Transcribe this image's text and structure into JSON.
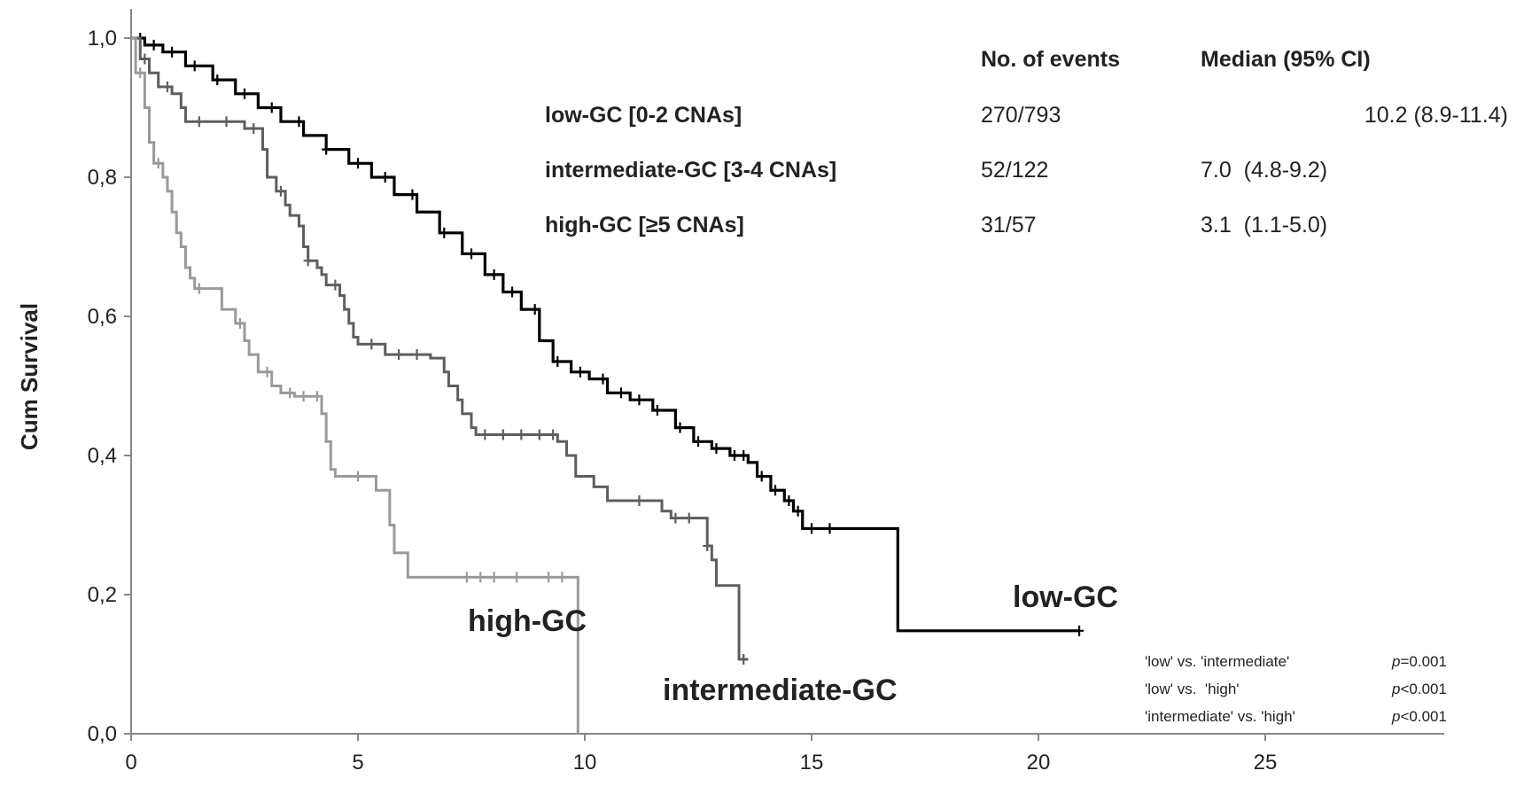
{
  "chart_data": {
    "type": "line",
    "chart_kind": "kaplan-meier",
    "ylabel": "Cum Survival",
    "xlabel": "",
    "xlim": [
      0,
      26.5
    ],
    "ylim": [
      0,
      1.0
    ],
    "x_ticks": [
      "0",
      "5",
      "10",
      "15",
      "20",
      "25"
    ],
    "x_tick_values": [
      0,
      5,
      10,
      15,
      20,
      25
    ],
    "y_ticks": [
      "0,0",
      "0,2",
      "0,4",
      "0,6",
      "0,8",
      "1,0"
    ],
    "y_tick_values": [
      0,
      0.2,
      0.4,
      0.6,
      0.8,
      1.0
    ],
    "grid": false,
    "series": [
      {
        "name": "low-GC",
        "color": "#000000",
        "steps": [
          [
            0,
            1.0
          ],
          [
            0.3,
            0.99
          ],
          [
            0.7,
            0.98
          ],
          [
            1.2,
            0.96
          ],
          [
            1.8,
            0.94
          ],
          [
            2.3,
            0.92
          ],
          [
            2.8,
            0.9
          ],
          [
            3.3,
            0.88
          ],
          [
            3.8,
            0.86
          ],
          [
            4.3,
            0.84
          ],
          [
            4.8,
            0.82
          ],
          [
            5.3,
            0.8
          ],
          [
            5.8,
            0.775
          ],
          [
            6.3,
            0.75
          ],
          [
            6.8,
            0.72
          ],
          [
            7.3,
            0.69
          ],
          [
            7.8,
            0.66
          ],
          [
            8.2,
            0.635
          ],
          [
            8.6,
            0.61
          ],
          [
            9.0,
            0.565
          ],
          [
            9.3,
            0.535
          ],
          [
            9.7,
            0.52
          ],
          [
            10.1,
            0.51
          ],
          [
            10.5,
            0.49
          ],
          [
            11.0,
            0.48
          ],
          [
            11.5,
            0.465
          ],
          [
            12.0,
            0.44
          ],
          [
            12.4,
            0.42
          ],
          [
            12.8,
            0.41
          ],
          [
            13.2,
            0.4
          ],
          [
            13.6,
            0.39
          ],
          [
            13.8,
            0.37
          ],
          [
            14.1,
            0.35
          ],
          [
            14.4,
            0.335
          ],
          [
            14.6,
            0.32
          ],
          [
            14.8,
            0.295
          ],
          [
            16.9,
            0.148
          ],
          [
            20.9,
            0.148
          ]
        ],
        "censor_x": [
          0.2,
          0.5,
          0.9,
          1.4,
          1.9,
          2.5,
          3.1,
          3.7,
          4.3,
          5.0,
          5.6,
          6.2,
          6.9,
          7.5,
          8.0,
          8.4,
          8.9,
          9.4,
          9.9,
          10.4,
          10.8,
          11.2,
          11.6,
          12.1,
          12.5,
          12.9,
          13.3,
          13.5,
          13.9,
          14.2,
          14.5,
          14.7,
          15.0,
          15.4,
          20.9
        ]
      },
      {
        "name": "intermediate-GC",
        "color": "#5e5e5e",
        "steps": [
          [
            0,
            1.0
          ],
          [
            0.2,
            0.97
          ],
          [
            0.4,
            0.95
          ],
          [
            0.6,
            0.93
          ],
          [
            0.9,
            0.92
          ],
          [
            1.1,
            0.9
          ],
          [
            1.2,
            0.88
          ],
          [
            2.5,
            0.87
          ],
          [
            2.9,
            0.84
          ],
          [
            3.0,
            0.8
          ],
          [
            3.2,
            0.78
          ],
          [
            3.4,
            0.76
          ],
          [
            3.5,
            0.745
          ],
          [
            3.7,
            0.73
          ],
          [
            3.8,
            0.7
          ],
          [
            3.9,
            0.68
          ],
          [
            4.1,
            0.67
          ],
          [
            4.2,
            0.66
          ],
          [
            4.3,
            0.645
          ],
          [
            4.6,
            0.63
          ],
          [
            4.7,
            0.61
          ],
          [
            4.8,
            0.59
          ],
          [
            4.9,
            0.57
          ],
          [
            5.0,
            0.56
          ],
          [
            5.6,
            0.545
          ],
          [
            6.6,
            0.54
          ],
          [
            6.9,
            0.52
          ],
          [
            7.0,
            0.5
          ],
          [
            7.2,
            0.48
          ],
          [
            7.3,
            0.46
          ],
          [
            7.5,
            0.44
          ],
          [
            7.6,
            0.43
          ],
          [
            9.4,
            0.42
          ],
          [
            9.6,
            0.4
          ],
          [
            9.8,
            0.37
          ],
          [
            10.2,
            0.355
          ],
          [
            10.5,
            0.335
          ],
          [
            11.7,
            0.32
          ],
          [
            11.9,
            0.31
          ],
          [
            12.6,
            0.31
          ],
          [
            12.7,
            0.27
          ],
          [
            12.8,
            0.25
          ],
          [
            12.9,
            0.213
          ],
          [
            13.3,
            0.213
          ],
          [
            13.4,
            0.107
          ],
          [
            13.6,
            0.107
          ]
        ],
        "censor_x": [
          0.3,
          0.8,
          1.5,
          2.1,
          2.7,
          3.3,
          3.9,
          4.5,
          5.3,
          5.9,
          6.3,
          7.8,
          8.2,
          8.6,
          9.0,
          9.3,
          11.2,
          12.0,
          12.3,
          12.7,
          13.5
        ]
      },
      {
        "name": "high-GC",
        "color": "#9a9a9a",
        "steps": [
          [
            0,
            1.0
          ],
          [
            0.1,
            0.95
          ],
          [
            0.3,
            0.9
          ],
          [
            0.4,
            0.85
          ],
          [
            0.5,
            0.82
          ],
          [
            0.7,
            0.8
          ],
          [
            0.8,
            0.78
          ],
          [
            0.9,
            0.75
          ],
          [
            1.0,
            0.72
          ],
          [
            1.1,
            0.7
          ],
          [
            1.2,
            0.67
          ],
          [
            1.3,
            0.655
          ],
          [
            1.4,
            0.64
          ],
          [
            1.6,
            0.64
          ],
          [
            2.0,
            0.61
          ],
          [
            2.3,
            0.59
          ],
          [
            2.5,
            0.565
          ],
          [
            2.6,
            0.545
          ],
          [
            2.8,
            0.52
          ],
          [
            3.1,
            0.5
          ],
          [
            3.3,
            0.49
          ],
          [
            3.6,
            0.485
          ],
          [
            4.2,
            0.46
          ],
          [
            4.3,
            0.42
          ],
          [
            4.4,
            0.38
          ],
          [
            4.5,
            0.37
          ],
          [
            5.4,
            0.35
          ],
          [
            5.7,
            0.3
          ],
          [
            5.8,
            0.26
          ],
          [
            6.0,
            0.26
          ],
          [
            6.1,
            0.225
          ],
          [
            6.9,
            0.225
          ],
          [
            9.85,
            0.225
          ],
          [
            9.85,
            0.0
          ]
        ],
        "censor_x": [
          0.2,
          0.6,
          1.5,
          2.4,
          3.0,
          3.5,
          3.8,
          4.1,
          5.0,
          7.4,
          7.7,
          8.0,
          8.5,
          9.2,
          9.5
        ]
      }
    ]
  },
  "table": {
    "header_events": "No. of events",
    "header_median": "Median (95% CI)",
    "rows": [
      {
        "label": "low-GC [0-2 CNAs]",
        "events": "270/793",
        "median": "10.2 (8.9-11.4)"
      },
      {
        "label": "intermediate-GC [3-4 CNAs]",
        "events": "52/122",
        "median": "7.0  (4.8-9.2)"
      },
      {
        "label": "high-GC [≥5 CNAs]",
        "events": "31/57",
        "median": "3.1  (1.1-5.0)"
      }
    ]
  },
  "curve_labels": {
    "low": "low-GC",
    "high": "high-GC",
    "intermediate": "intermediate-GC"
  },
  "pvalues": [
    {
      "comparison": "'low' vs. 'intermediate'",
      "p_symbol": "p",
      "p_value": "=0.001"
    },
    {
      "comparison": "'low' vs.  'high'",
      "p_symbol": "p",
      "p_value": "<0.001"
    },
    {
      "comparison": "'intermediate' vs. 'high'",
      "p_symbol": "p",
      "p_value": "<0.001"
    }
  ]
}
